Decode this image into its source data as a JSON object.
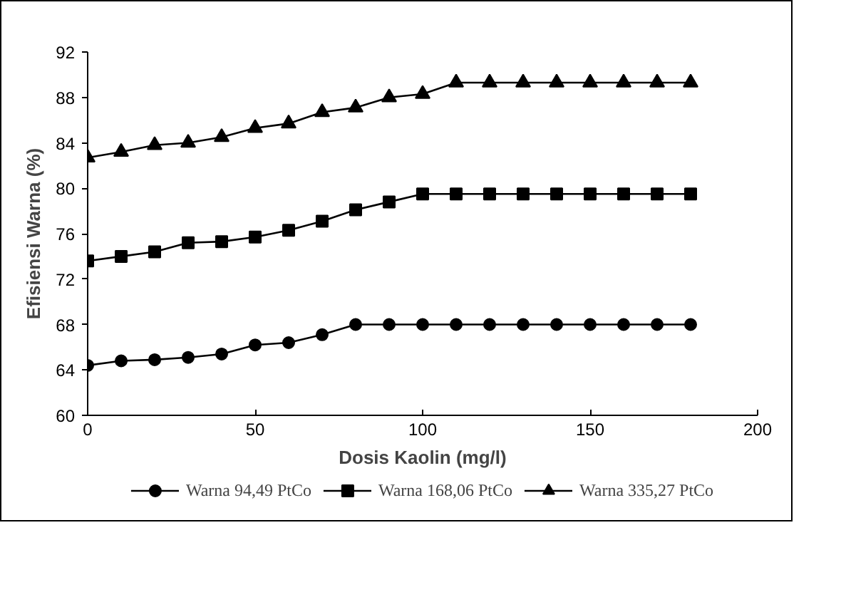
{
  "chart_data": {
    "type": "line",
    "xlabel": "Dosis Kaolin (mg/l)",
    "ylabel": "Efisiensi Warna (%)",
    "x": [
      0,
      10,
      20,
      30,
      40,
      50,
      60,
      70,
      80,
      90,
      100,
      110,
      120,
      130,
      140,
      150,
      160,
      170,
      180
    ],
    "xlim": [
      0,
      200
    ],
    "xticks": [
      0,
      50,
      100,
      150,
      200
    ],
    "ylim": [
      60,
      92
    ],
    "yticks": [
      60,
      64,
      68,
      72,
      76,
      80,
      84,
      88,
      92
    ],
    "grid": false,
    "legend": "bottom",
    "line_style": "solid",
    "series": [
      {
        "name": "Warna 94,49 PtCo",
        "color": "#000000",
        "marker": "circle",
        "values": [
          64.4,
          64.8,
          64.9,
          65.1,
          65.4,
          66.2,
          66.4,
          67.1,
          68.0,
          68.0,
          68.0,
          68.0,
          68.0,
          68.0,
          68.0,
          68.0,
          68.0,
          68.0,
          68.0
        ]
      },
      {
        "name": "Warna 168,06 PtCo",
        "color": "#000000",
        "marker": "square",
        "values": [
          73.6,
          74.0,
          74.4,
          75.2,
          75.3,
          75.7,
          76.3,
          77.1,
          78.1,
          78.8,
          79.5,
          79.5,
          79.5,
          79.5,
          79.5,
          79.5,
          79.5,
          79.5,
          79.5
        ]
      },
      {
        "name": "Warna 335,27 PtCo",
        "color": "#000000",
        "marker": "triangle",
        "values": [
          82.7,
          83.2,
          83.8,
          84.0,
          84.5,
          85.3,
          85.7,
          86.7,
          87.1,
          88.0,
          88.3,
          89.3,
          89.3,
          89.3,
          89.3,
          89.3,
          89.3,
          89.3,
          89.3
        ]
      }
    ]
  }
}
